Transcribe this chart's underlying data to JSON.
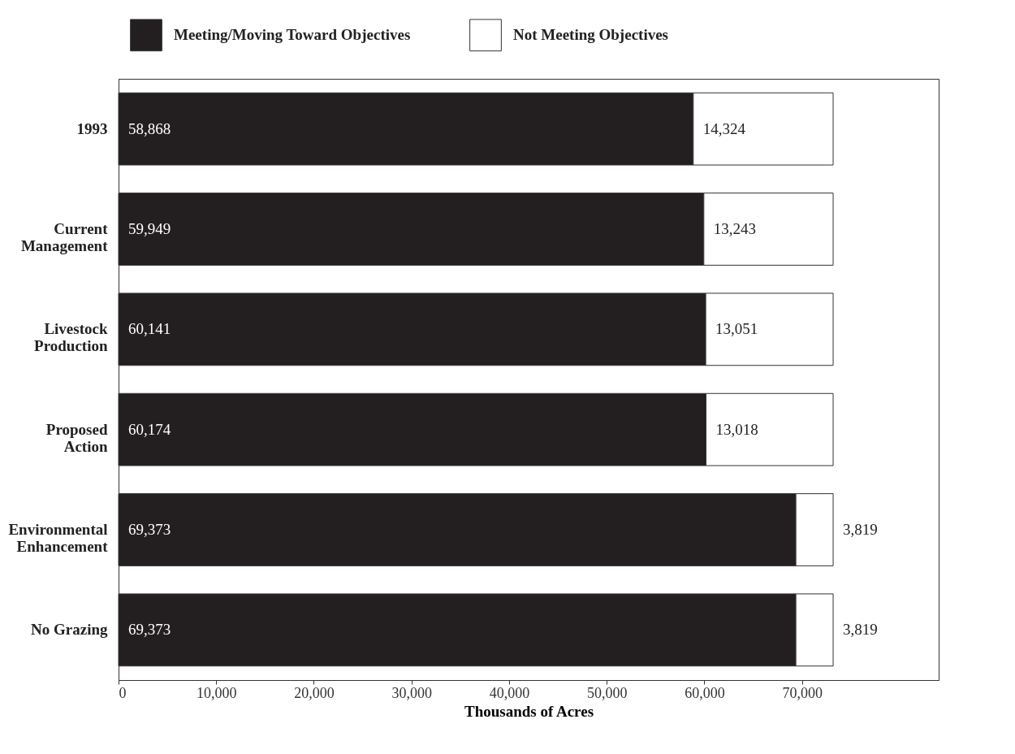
{
  "chart_data": {
    "type": "bar",
    "orientation": "horizontal",
    "stacked": true,
    "xlabel": "Thousands of Acres",
    "categories": [
      "1993",
      "Current Management",
      "Livestock Production",
      "Proposed Action",
      "Environmental Enhancement",
      "No Grazing"
    ],
    "series": [
      {
        "name": "Meeting/Moving Toward Objectives",
        "color": "#231f20",
        "values": [
          58868,
          59949,
          60141,
          60174,
          69373,
          69373
        ],
        "value_labels": [
          "58,868",
          "59,949",
          "60,141",
          "60,174",
          "69,373",
          "69,373"
        ]
      },
      {
        "name": "Not Meeting Objectives",
        "color": "#ffffff",
        "values": [
          14324,
          13243,
          13051,
          13018,
          3819,
          3819
        ],
        "value_labels": [
          "14,324",
          "13,243",
          "13,051",
          "13,018",
          "3,819",
          "3,819"
        ]
      }
    ],
    "xlim": [
      0,
      84000
    ],
    "xticks": [
      0,
      {
        "value": 10000,
        "label": "10,000"
      },
      {
        "value": 20000,
        "label": "20,000"
      },
      {
        "value": 30000,
        "label": "30,000"
      },
      {
        "value": 40000,
        "label": "40,000"
      },
      {
        "value": 50000,
        "label": "50,000"
      },
      {
        "value": 60000,
        "label": "60,000"
      },
      {
        "value": 70000,
        "label": "70,000"
      }
    ],
    "legend": "top",
    "grid": false
  }
}
